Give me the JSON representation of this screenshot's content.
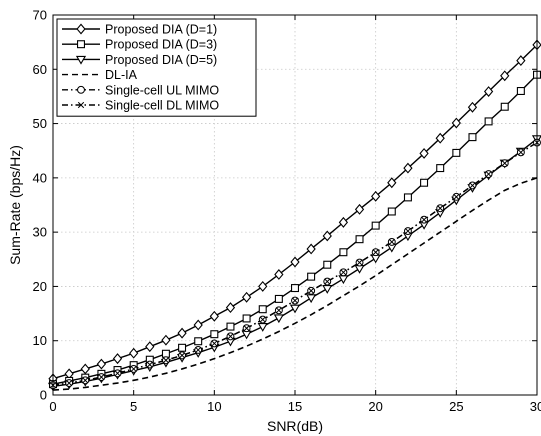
{
  "chart_data": {
    "type": "line",
    "title": "",
    "xlabel": "SNR(dB)",
    "ylabel": "Sum-Rate (bps/Hz)",
    "xlim": [
      0,
      30
    ],
    "ylim": [
      0,
      70
    ],
    "xticks": [
      0,
      5,
      10,
      15,
      20,
      25,
      30
    ],
    "yticks": [
      0,
      10,
      20,
      30,
      40,
      50,
      60,
      70
    ],
    "grid": true,
    "legend_position": "top-left",
    "x": [
      0,
      1,
      2,
      3,
      4,
      5,
      6,
      7,
      8,
      9,
      10,
      11,
      12,
      13,
      14,
      15,
      16,
      17,
      18,
      19,
      20,
      21,
      22,
      23,
      24,
      25,
      26,
      27,
      28,
      29,
      30
    ],
    "series": [
      {
        "name": "Proposed DIA (D=1)",
        "marker": "diamond",
        "line": "solid",
        "values": [
          3.0,
          3.9,
          4.8,
          5.7,
          6.7,
          7.7,
          8.9,
          10.1,
          11.4,
          12.9,
          14.5,
          16.1,
          18.0,
          20.0,
          22.2,
          24.5,
          26.9,
          29.3,
          31.8,
          34.2,
          36.6,
          39.1,
          41.8,
          44.5,
          47.3,
          50.1,
          53.0,
          55.9,
          58.8,
          61.6,
          64.5
        ],
        "color": "#000000"
      },
      {
        "name": "Proposed DIA (D=3)",
        "marker": "square",
        "line": "solid",
        "values": [
          2.0,
          2.6,
          3.2,
          3.9,
          4.6,
          5.5,
          6.5,
          7.6,
          8.7,
          9.9,
          11.2,
          12.6,
          14.1,
          15.8,
          17.7,
          19.7,
          21.8,
          24.0,
          26.3,
          28.7,
          31.2,
          33.8,
          36.4,
          39.1,
          41.8,
          44.6,
          47.5,
          50.4,
          53.1,
          56.0,
          59.0
        ],
        "color": "#000000"
      },
      {
        "name": "Proposed DIA (D=5)",
        "marker": "triangle-down",
        "line": "solid",
        "values": [
          1.6,
          2.0,
          2.5,
          3.1,
          3.8,
          4.5,
          5.2,
          6.0,
          6.9,
          7.8,
          8.8,
          9.9,
          11.2,
          12.6,
          14.2,
          16.0,
          17.9,
          19.6,
          21.4,
          23.3,
          25.2,
          27.2,
          29.3,
          31.4,
          33.6,
          35.9,
          38.2,
          40.5,
          42.7,
          44.9,
          47.2
        ],
        "color": "#000000"
      },
      {
        "name": "DL-IA",
        "marker": "none",
        "line": "dashed",
        "values": [
          0.9,
          1.1,
          1.4,
          1.8,
          2.2,
          2.7,
          3.3,
          4.0,
          4.8,
          5.7,
          6.7,
          7.8,
          9.0,
          10.3,
          11.7,
          13.2,
          14.8,
          16.5,
          18.3,
          20.1,
          22.0,
          24.0,
          26.0,
          28.0,
          30.0,
          32.0,
          34.0,
          35.9,
          37.7,
          39.0,
          40.0
        ],
        "color": "#000000"
      },
      {
        "name": "Single-cell UL MIMO",
        "marker": "circle",
        "line": "dashdot",
        "values": [
          1.8,
          2.2,
          2.7,
          3.3,
          4.0,
          4.8,
          5.6,
          6.4,
          7.3,
          8.3,
          9.5,
          10.8,
          12.3,
          13.9,
          15.6,
          17.4,
          19.2,
          20.9,
          22.6,
          24.4,
          26.3,
          28.2,
          30.2,
          32.3,
          34.4,
          36.5,
          38.6,
          40.7,
          42.7,
          44.7,
          46.5
        ],
        "color": "#000000"
      },
      {
        "name": "Single-cell DL MIMO",
        "marker": "x",
        "line": "dashdot",
        "values": [
          1.8,
          2.2,
          2.7,
          3.3,
          4.0,
          4.8,
          5.6,
          6.4,
          7.3,
          8.3,
          9.5,
          10.8,
          12.3,
          13.9,
          15.6,
          17.4,
          19.2,
          20.9,
          22.6,
          24.4,
          26.3,
          28.2,
          30.2,
          32.3,
          34.4,
          36.5,
          38.6,
          40.7,
          42.7,
          44.7,
          46.5
        ],
        "color": "#000000"
      }
    ]
  }
}
